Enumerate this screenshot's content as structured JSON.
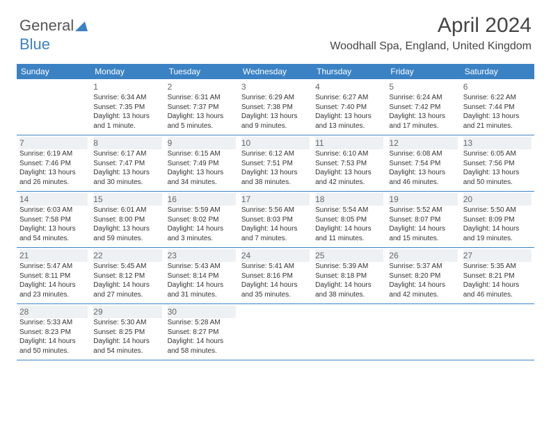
{
  "logo": {
    "part1": "General",
    "part2": "Blue"
  },
  "header": {
    "title": "April 2024",
    "subtitle": "Woodhall Spa, England, United Kingdom"
  },
  "colors": {
    "header_bg": "#3b82c4",
    "row_border": "#3b82c4",
    "shade_bg": "#eef1f3",
    "text": "#333333",
    "daynum": "#666666"
  },
  "weekdays": [
    "Sunday",
    "Monday",
    "Tuesday",
    "Wednesday",
    "Thursday",
    "Friday",
    "Saturday"
  ],
  "weeks": [
    [
      null,
      {
        "n": "1",
        "sr": "Sunrise: 6:34 AM",
        "ss": "Sunset: 7:35 PM",
        "d1": "Daylight: 13 hours",
        "d2": "and 1 minute."
      },
      {
        "n": "2",
        "sr": "Sunrise: 6:31 AM",
        "ss": "Sunset: 7:37 PM",
        "d1": "Daylight: 13 hours",
        "d2": "and 5 minutes."
      },
      {
        "n": "3",
        "sr": "Sunrise: 6:29 AM",
        "ss": "Sunset: 7:38 PM",
        "d1": "Daylight: 13 hours",
        "d2": "and 9 minutes."
      },
      {
        "n": "4",
        "sr": "Sunrise: 6:27 AM",
        "ss": "Sunset: 7:40 PM",
        "d1": "Daylight: 13 hours",
        "d2": "and 13 minutes."
      },
      {
        "n": "5",
        "sr": "Sunrise: 6:24 AM",
        "ss": "Sunset: 7:42 PM",
        "d1": "Daylight: 13 hours",
        "d2": "and 17 minutes."
      },
      {
        "n": "6",
        "sr": "Sunrise: 6:22 AM",
        "ss": "Sunset: 7:44 PM",
        "d1": "Daylight: 13 hours",
        "d2": "and 21 minutes."
      }
    ],
    [
      {
        "n": "7",
        "sr": "Sunrise: 6:19 AM",
        "ss": "Sunset: 7:46 PM",
        "d1": "Daylight: 13 hours",
        "d2": "and 26 minutes."
      },
      {
        "n": "8",
        "sr": "Sunrise: 6:17 AM",
        "ss": "Sunset: 7:47 PM",
        "d1": "Daylight: 13 hours",
        "d2": "and 30 minutes."
      },
      {
        "n": "9",
        "sr": "Sunrise: 6:15 AM",
        "ss": "Sunset: 7:49 PM",
        "d1": "Daylight: 13 hours",
        "d2": "and 34 minutes."
      },
      {
        "n": "10",
        "sr": "Sunrise: 6:12 AM",
        "ss": "Sunset: 7:51 PM",
        "d1": "Daylight: 13 hours",
        "d2": "and 38 minutes."
      },
      {
        "n": "11",
        "sr": "Sunrise: 6:10 AM",
        "ss": "Sunset: 7:53 PM",
        "d1": "Daylight: 13 hours",
        "d2": "and 42 minutes."
      },
      {
        "n": "12",
        "sr": "Sunrise: 6:08 AM",
        "ss": "Sunset: 7:54 PM",
        "d1": "Daylight: 13 hours",
        "d2": "and 46 minutes."
      },
      {
        "n": "13",
        "sr": "Sunrise: 6:05 AM",
        "ss": "Sunset: 7:56 PM",
        "d1": "Daylight: 13 hours",
        "d2": "and 50 minutes."
      }
    ],
    [
      {
        "n": "14",
        "sr": "Sunrise: 6:03 AM",
        "ss": "Sunset: 7:58 PM",
        "d1": "Daylight: 13 hours",
        "d2": "and 54 minutes."
      },
      {
        "n": "15",
        "sr": "Sunrise: 6:01 AM",
        "ss": "Sunset: 8:00 PM",
        "d1": "Daylight: 13 hours",
        "d2": "and 59 minutes."
      },
      {
        "n": "16",
        "sr": "Sunrise: 5:59 AM",
        "ss": "Sunset: 8:02 PM",
        "d1": "Daylight: 14 hours",
        "d2": "and 3 minutes."
      },
      {
        "n": "17",
        "sr": "Sunrise: 5:56 AM",
        "ss": "Sunset: 8:03 PM",
        "d1": "Daylight: 14 hours",
        "d2": "and 7 minutes."
      },
      {
        "n": "18",
        "sr": "Sunrise: 5:54 AM",
        "ss": "Sunset: 8:05 PM",
        "d1": "Daylight: 14 hours",
        "d2": "and 11 minutes."
      },
      {
        "n": "19",
        "sr": "Sunrise: 5:52 AM",
        "ss": "Sunset: 8:07 PM",
        "d1": "Daylight: 14 hours",
        "d2": "and 15 minutes."
      },
      {
        "n": "20",
        "sr": "Sunrise: 5:50 AM",
        "ss": "Sunset: 8:09 PM",
        "d1": "Daylight: 14 hours",
        "d2": "and 19 minutes."
      }
    ],
    [
      {
        "n": "21",
        "sr": "Sunrise: 5:47 AM",
        "ss": "Sunset: 8:11 PM",
        "d1": "Daylight: 14 hours",
        "d2": "and 23 minutes."
      },
      {
        "n": "22",
        "sr": "Sunrise: 5:45 AM",
        "ss": "Sunset: 8:12 PM",
        "d1": "Daylight: 14 hours",
        "d2": "and 27 minutes."
      },
      {
        "n": "23",
        "sr": "Sunrise: 5:43 AM",
        "ss": "Sunset: 8:14 PM",
        "d1": "Daylight: 14 hours",
        "d2": "and 31 minutes."
      },
      {
        "n": "24",
        "sr": "Sunrise: 5:41 AM",
        "ss": "Sunset: 8:16 PM",
        "d1": "Daylight: 14 hours",
        "d2": "and 35 minutes."
      },
      {
        "n": "25",
        "sr": "Sunrise: 5:39 AM",
        "ss": "Sunset: 8:18 PM",
        "d1": "Daylight: 14 hours",
        "d2": "and 38 minutes."
      },
      {
        "n": "26",
        "sr": "Sunrise: 5:37 AM",
        "ss": "Sunset: 8:20 PM",
        "d1": "Daylight: 14 hours",
        "d2": "and 42 minutes."
      },
      {
        "n": "27",
        "sr": "Sunrise: 5:35 AM",
        "ss": "Sunset: 8:21 PM",
        "d1": "Daylight: 14 hours",
        "d2": "and 46 minutes."
      }
    ],
    [
      {
        "n": "28",
        "sr": "Sunrise: 5:33 AM",
        "ss": "Sunset: 8:23 PM",
        "d1": "Daylight: 14 hours",
        "d2": "and 50 minutes."
      },
      {
        "n": "29",
        "sr": "Sunrise: 5:30 AM",
        "ss": "Sunset: 8:25 PM",
        "d1": "Daylight: 14 hours",
        "d2": "and 54 minutes."
      },
      {
        "n": "30",
        "sr": "Sunrise: 5:28 AM",
        "ss": "Sunset: 8:27 PM",
        "d1": "Daylight: 14 hours",
        "d2": "and 58 minutes."
      },
      null,
      null,
      null,
      null
    ]
  ]
}
